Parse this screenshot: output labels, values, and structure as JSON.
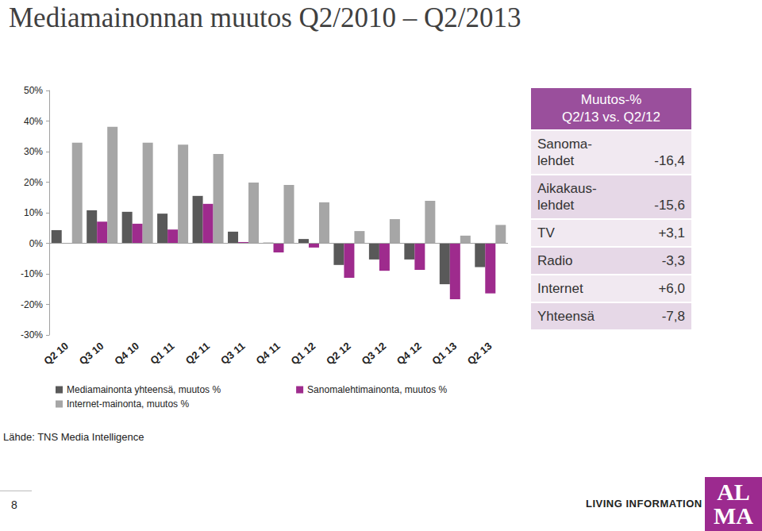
{
  "chart_data": {
    "type": "bar",
    "title": "Mediamainonnan muutos Q2/2010 – Q2/2013",
    "categories": [
      "Q2 10",
      "Q3 10",
      "Q4 10",
      "Q1 11",
      "Q2 11",
      "Q3 11",
      "Q4 11",
      "Q1 12",
      "Q2 12",
      "Q3 12",
      "Q4 12",
      "Q1 13",
      "Q2 13"
    ],
    "series": [
      {
        "name": "Mediamainonta yhteensä, muutos %",
        "color": "#595959",
        "values": [
          4.3,
          10.8,
          10.3,
          9.7,
          15.5,
          3.8,
          0.2,
          1.4,
          -7.1,
          -5.3,
          -5.3,
          -13.4,
          -7.8
        ]
      },
      {
        "name": "Sanomalehtimainonta, muutos %",
        "color": "#9e2b8d",
        "values": [
          null,
          7.1,
          6.4,
          4.5,
          12.9,
          0.4,
          -3.0,
          -1.4,
          -11.3,
          -9.0,
          -8.7,
          -18.3,
          -16.4
        ]
      },
      {
        "name": "Internet-mainonta, muutos %",
        "color": "#a6a6a6",
        "values": [
          32.9,
          38.1,
          32.9,
          32.3,
          29.2,
          19.9,
          19.1,
          13.4,
          4.0,
          7.9,
          13.9,
          2.5,
          6.0
        ]
      }
    ],
    "ylim": [
      -30,
      50
    ],
    "yticks": [
      {
        "value": -30,
        "label": "-30%"
      },
      {
        "value": -20,
        "label": "-20%"
      },
      {
        "value": -10,
        "label": "-10%"
      },
      {
        "value": 0,
        "label": "0%"
      },
      {
        "value": 10,
        "label": "10%"
      },
      {
        "value": 20,
        "label": "20%"
      },
      {
        "value": 30,
        "label": "30%"
      },
      {
        "value": 40,
        "label": "40%"
      },
      {
        "value": 50,
        "label": "50%"
      }
    ],
    "grid": false,
    "legend": "bottom-left",
    "stacked": false,
    "data_labels": false
  },
  "table": {
    "header": [
      "Muutos-%",
      "Q2/13 vs. Q2/12"
    ],
    "rows": [
      [
        "Sanoma-\nlehdet",
        "-16,4"
      ],
      [
        "Aikakaus-\nlehdet",
        "-15,6"
      ],
      [
        "TV",
        "+3,1"
      ],
      [
        "Radio",
        "-3,3"
      ],
      [
        "Internet",
        "+6,0"
      ],
      [
        "Yhteensä",
        "-7,8"
      ]
    ]
  },
  "source": "Lähde: TNS Media Intelligence",
  "page": "8",
  "logo": {
    "tagline": "LIVING INFORMATION",
    "mark": [
      "AL",
      "MA"
    ]
  }
}
